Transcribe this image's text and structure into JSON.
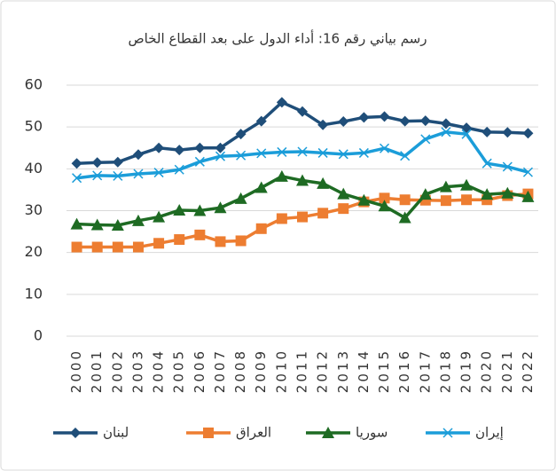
{
  "chart_data": {
    "type": "line",
    "title": "رسم بياني رقم 16: أداء الدول على بعد القطاع الخاص",
    "categories": [
      "2000",
      "2001",
      "2002",
      "2003",
      "2004",
      "2005",
      "2006",
      "2007",
      "2008",
      "2009",
      "2010",
      "2011",
      "2012",
      "2013",
      "2014",
      "2015",
      "2016",
      "2017",
      "2018",
      "2019",
      "2020",
      "2021",
      "2022"
    ],
    "ylim": [
      0,
      60
    ],
    "yticks": [
      0,
      10,
      20,
      30,
      40,
      50,
      60
    ],
    "grid": true,
    "legend": "bottom",
    "series": [
      {
        "name": "لبنان",
        "color": "#1f4e79",
        "marker": "diamond",
        "values": [
          41.3,
          41.5,
          41.6,
          43.4,
          45,
          44.5,
          45,
          45,
          48.3,
          51.4,
          55.9,
          53.7,
          50.5,
          51.3,
          52.3,
          52.5,
          51.4,
          51.5,
          50.8,
          49.8,
          48.8,
          48.7,
          48.5
        ]
      },
      {
        "name": "العراق",
        "color": "#ed7d31",
        "marker": "square",
        "values": [
          21.3,
          21.3,
          21.3,
          21.3,
          22.2,
          23.1,
          24.2,
          22.6,
          22.8,
          25.7,
          28.1,
          28.5,
          29.4,
          30.5,
          32.1,
          33,
          32.6,
          32.5,
          32.4,
          32.6,
          32.6,
          33.6,
          34
        ]
      },
      {
        "name": "سوريا",
        "color": "#1e6b23",
        "marker": "triangle",
        "values": [
          26.8,
          26.6,
          26.5,
          27.6,
          28.5,
          30.1,
          30,
          30.7,
          32.9,
          35.5,
          38.2,
          37.2,
          36.5,
          34,
          32.5,
          31.1,
          28.3,
          33.9,
          35.7,
          36.1,
          33.9,
          34.2,
          33.3
        ]
      },
      {
        "name": "إيران",
        "color": "#1b9dd9",
        "marker": "x",
        "values": [
          37.8,
          38.4,
          38.3,
          38.8,
          39.1,
          39.8,
          41.7,
          43,
          43.2,
          43.7,
          44,
          44.1,
          43.8,
          43.5,
          43.8,
          44.9,
          43.1,
          47.1,
          48.8,
          48.3,
          41.3,
          40.5,
          39.2
        ]
      }
    ]
  }
}
